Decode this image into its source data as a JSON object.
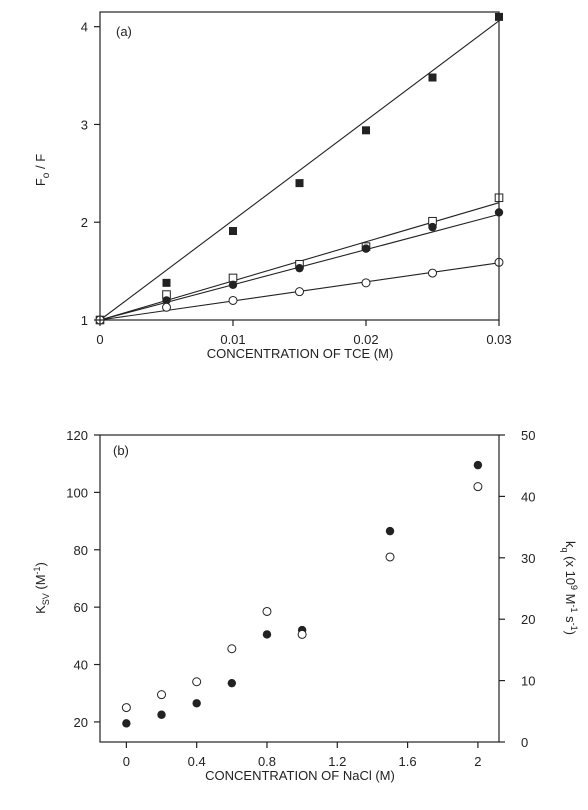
{
  "figure": {
    "background": "#ffffff",
    "ink": "#222222"
  },
  "chart_data": [
    {
      "type": "scatter",
      "panel_label": "(a)",
      "xlabel": "CONCENTRATION  OF TCE (M)",
      "ylabel": {
        "main": "F",
        "sub": "o",
        "rest": " / F"
      },
      "xlim": [
        0,
        0.03
      ],
      "ylim": [
        1,
        4.15
      ],
      "xticks": [
        0,
        0.01,
        0.02,
        0.03
      ],
      "xtick_labels": [
        "0",
        "0.01",
        "0.02",
        "0.03"
      ],
      "yticks": [
        1,
        2,
        3,
        4
      ],
      "ytick_labels": [
        "1",
        "2",
        "3",
        "4"
      ],
      "grid": false,
      "series": [
        {
          "marker": "filled-square",
          "x": [
            0,
            0.005,
            0.01,
            0.015,
            0.02,
            0.025,
            0.03
          ],
          "y": [
            1.0,
            1.38,
            1.91,
            2.4,
            2.94,
            3.48,
            4.1
          ],
          "fit": {
            "slope": 102,
            "intercept": 1.0
          }
        },
        {
          "marker": "open-square",
          "x": [
            0,
            0.005,
            0.01,
            0.015,
            0.02,
            0.025,
            0.03
          ],
          "y": [
            1.0,
            1.26,
            1.43,
            1.57,
            1.75,
            2.01,
            2.25
          ],
          "fit": {
            "slope": 40,
            "intercept": 1.0
          }
        },
        {
          "marker": "filled-circle",
          "x": [
            0,
            0.005,
            0.01,
            0.015,
            0.02,
            0.025,
            0.03
          ],
          "y": [
            1.0,
            1.2,
            1.36,
            1.53,
            1.73,
            1.95,
            2.1
          ],
          "fit": {
            "slope": 36,
            "intercept": 1.0
          }
        },
        {
          "marker": "open-circle",
          "x": [
            0,
            0.005,
            0.01,
            0.015,
            0.02,
            0.025,
            0.03
          ],
          "y": [
            1.0,
            1.13,
            1.2,
            1.29,
            1.38,
            1.48,
            1.59
          ],
          "fit": {
            "slope": 19.5,
            "intercept": 1.0
          }
        }
      ]
    },
    {
      "type": "scatter",
      "panel_label": "(b)",
      "xlabel": "CONCENTRATION  OF  NaCl (M)",
      "ylabel": {
        "main": "K",
        "sub": "SV",
        "rest": " (M",
        "sup": "-1",
        "close": ")"
      },
      "y2label": "k (x 10⁹ M⁻¹ s⁻¹)",
      "y2label_parts": {
        "main": "k",
        "sub": "q",
        "open": " (x 10",
        "sup1": "9",
        "mid": " M",
        "sup2": "-1",
        "mid2": " s",
        "sup3": "-1",
        "close": ")"
      },
      "xlim": [
        -0.15,
        2.12
      ],
      "ylim": [
        13,
        120
      ],
      "y2lim": [
        0,
        50
      ],
      "xticks": [
        0,
        0.4,
        0.8,
        1.2,
        1.6,
        2
      ],
      "xtick_labels": [
        "0",
        "0.4",
        "0.8",
        "1.2",
        "1.6",
        "2"
      ],
      "yticks": [
        20,
        40,
        60,
        80,
        100,
        120
      ],
      "ytick_labels": [
        "20",
        "40",
        "60",
        "80",
        "100",
        "120"
      ],
      "y2ticks": [
        0,
        10,
        20,
        30,
        40,
        50
      ],
      "y2tick_labels": [
        "0",
        "10",
        "20",
        "30",
        "40",
        "50"
      ],
      "grid": false,
      "series": [
        {
          "marker": "filled-circle",
          "axis": "left",
          "x": [
            0,
            0.2,
            0.4,
            0.6,
            0.8,
            1.0,
            1.5,
            2.0
          ],
          "y": [
            19.5,
            22.5,
            26.5,
            33.5,
            50.5,
            52,
            86.5,
            109.5
          ]
        },
        {
          "marker": "open-circle",
          "axis": "left",
          "x": [
            0,
            0.2,
            0.4,
            0.6,
            0.8,
            1.0,
            1.5,
            2.0
          ],
          "y": [
            25,
            29.5,
            34,
            45.5,
            58.5,
            50.5,
            77.5,
            102
          ]
        }
      ]
    }
  ]
}
